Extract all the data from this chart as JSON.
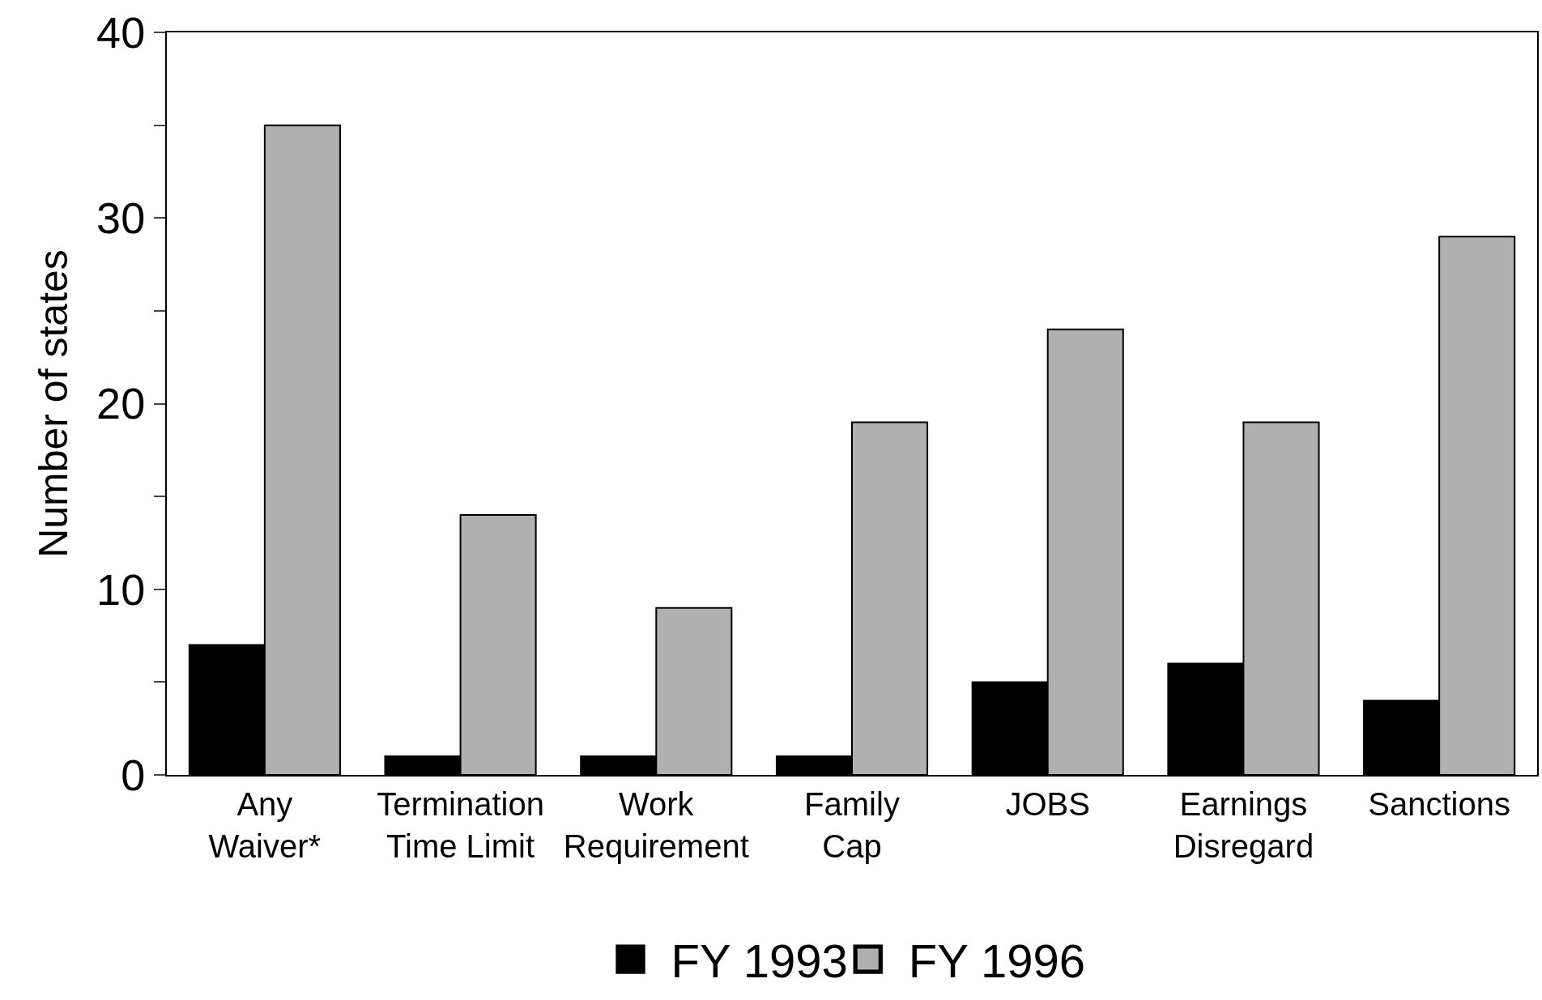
{
  "chart_data": {
    "type": "bar",
    "ylabel": "Number of states",
    "categories": [
      "Any\nWaiver*",
      "Termination\nTime Limit",
      "Work\nRequirement",
      "Family\nCap",
      "JOBS",
      "Earnings\nDisregard",
      "Sanctions"
    ],
    "series": [
      {
        "name": "FY 1993",
        "color": "#000000",
        "values": [
          7,
          1,
          1,
          1,
          5,
          6,
          4
        ]
      },
      {
        "name": "FY 1996",
        "color": "#b0b0b0",
        "values": [
          35,
          14,
          9,
          19,
          24,
          19,
          29
        ]
      }
    ],
    "ylim": [
      0,
      40
    ],
    "yticks": [
      0,
      {
        "value": 5,
        "label": null
      },
      10,
      {
        "value": 15,
        "label": null
      },
      20,
      {
        "value": 25,
        "label": null
      },
      30,
      {
        "value": 35,
        "label": null
      },
      40
    ],
    "grid": false,
    "legend": "bottom"
  }
}
